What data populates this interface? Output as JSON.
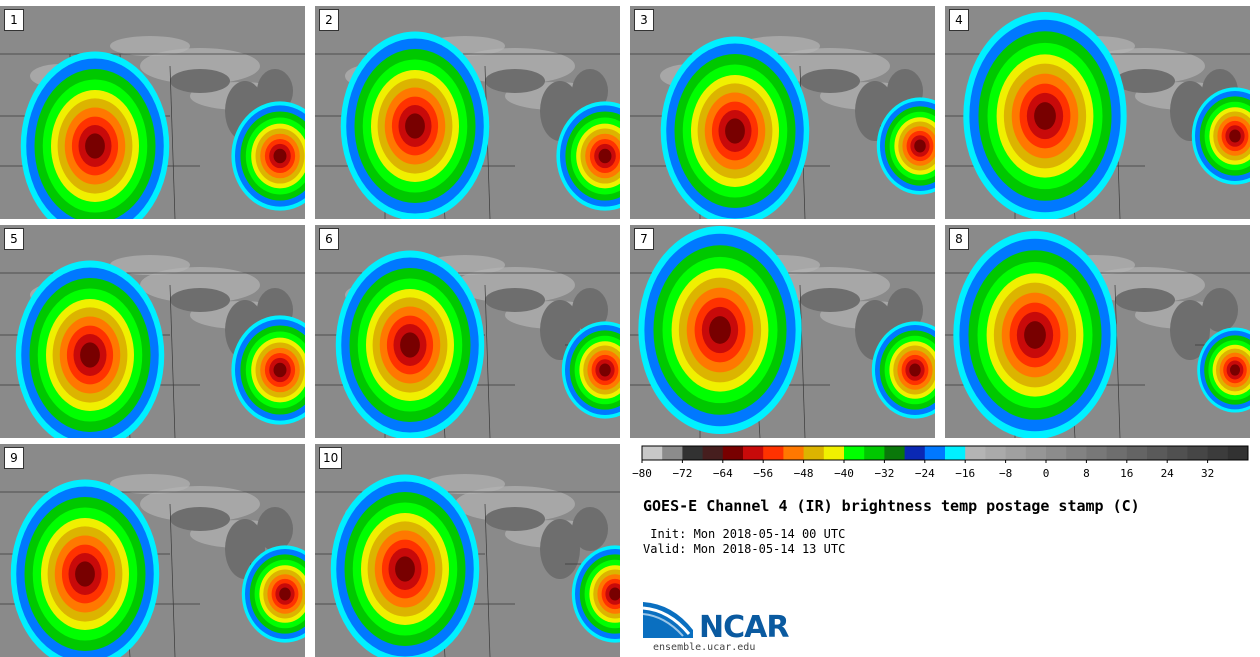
{
  "panels": [
    {
      "label": "1"
    },
    {
      "label": "2"
    },
    {
      "label": "3"
    },
    {
      "label": "4"
    },
    {
      "label": "5"
    },
    {
      "label": "6"
    },
    {
      "label": "7"
    },
    {
      "label": "8"
    },
    {
      "label": "9"
    },
    {
      "label": "10"
    }
  ],
  "colorbar": {
    "tick_labels": [
      "−80",
      "−72",
      "−64",
      "−56",
      "−48",
      "−40",
      "−32",
      "−24",
      "−16",
      "−8",
      "0",
      "8",
      "16",
      "24",
      "32"
    ],
    "colors": [
      "#c8c8c8",
      "#8c8c8c",
      "#323232",
      "#461e1e",
      "#780000",
      "#c80a0a",
      "#ff3200",
      "#ff7800",
      "#dcb400",
      "#f0f000",
      "#00ff00",
      "#00c800",
      "#0a780a",
      "#0a28b4",
      "#0078ff",
      "#00f0ff",
      "#b4b4b4",
      "#aaaaaa",
      "#a0a0a0",
      "#969696",
      "#8c8c8c",
      "#828282",
      "#787878",
      "#6e6e6e",
      "#646464",
      "#5a5a5a",
      "#505050",
      "#464646",
      "#3c3c3c",
      "#323232"
    ]
  },
  "title": "GOES-E Channel 4 (IR) brightness temp postage stamp (C)",
  "init": " Init: Mon 2018-05-14 00 UTC",
  "valid": "Valid: Mon 2018-05-14 13 UTC",
  "logo": {
    "name": "NCAR",
    "url": "ensemble.ucar.edu"
  }
}
